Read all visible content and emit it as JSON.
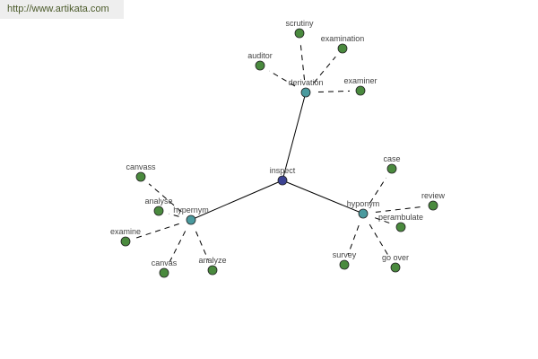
{
  "watermark": "http://www.artikata.com",
  "colors": {
    "root": "#3c4393",
    "relation": "#4a9a9e",
    "leaf": "#4a8a3e",
    "edge": "#000000"
  },
  "graph": {
    "root": {
      "id": "inspect",
      "label": "inspect"
    },
    "relations": [
      {
        "id": "derivation",
        "label": "derivation",
        "children": [
          "scrutiny",
          "examination",
          "auditor",
          "examiner"
        ]
      },
      {
        "id": "hypernym",
        "label": "hypernym",
        "children": [
          "canvass",
          "analyse",
          "examine",
          "canvas",
          "analyze"
        ]
      },
      {
        "id": "hyponym",
        "label": "hyponym",
        "children": [
          "case",
          "review",
          "perambulate",
          "survey",
          "go over"
        ]
      }
    ]
  }
}
